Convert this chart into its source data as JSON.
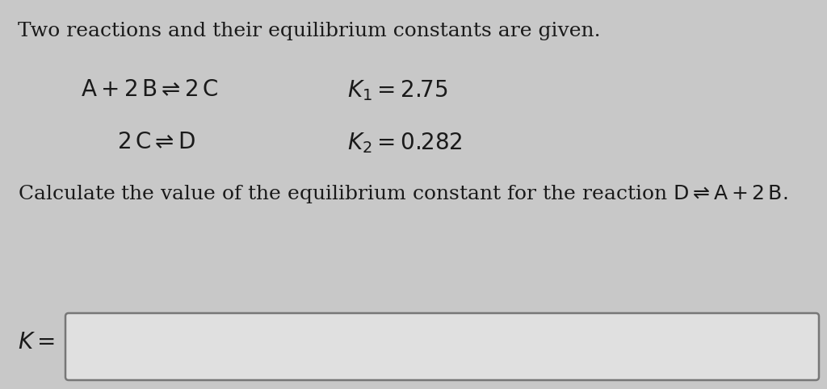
{
  "background_color": "#c8c8c8",
  "inner_bg": "#d4d4d4",
  "title_text": "Two reactions and their equilibrium constants are given.",
  "line1_eq": "$\\mathrm{A + 2\\,B} \\rightleftharpoons \\mathrm{2\\,C}$",
  "line1_k": "$K_1 = 2.75$",
  "line2_eq": "$\\mathrm{2\\,C} \\rightleftharpoons \\mathrm{D}$",
  "line2_k": "$K_2 = 0.282$",
  "question": "Calculate the value of the equilibrium constant for the reaction $\\mathrm{D} \\rightleftharpoons \\mathrm{A + 2\\,B.}$",
  "answer_label": "$K =$",
  "font_size_title": 18,
  "font_size_body": 18,
  "font_size_eq": 20,
  "text_color": "#1a1a1a",
  "box_fill": "#e0e0e0",
  "box_edge": "#777777"
}
